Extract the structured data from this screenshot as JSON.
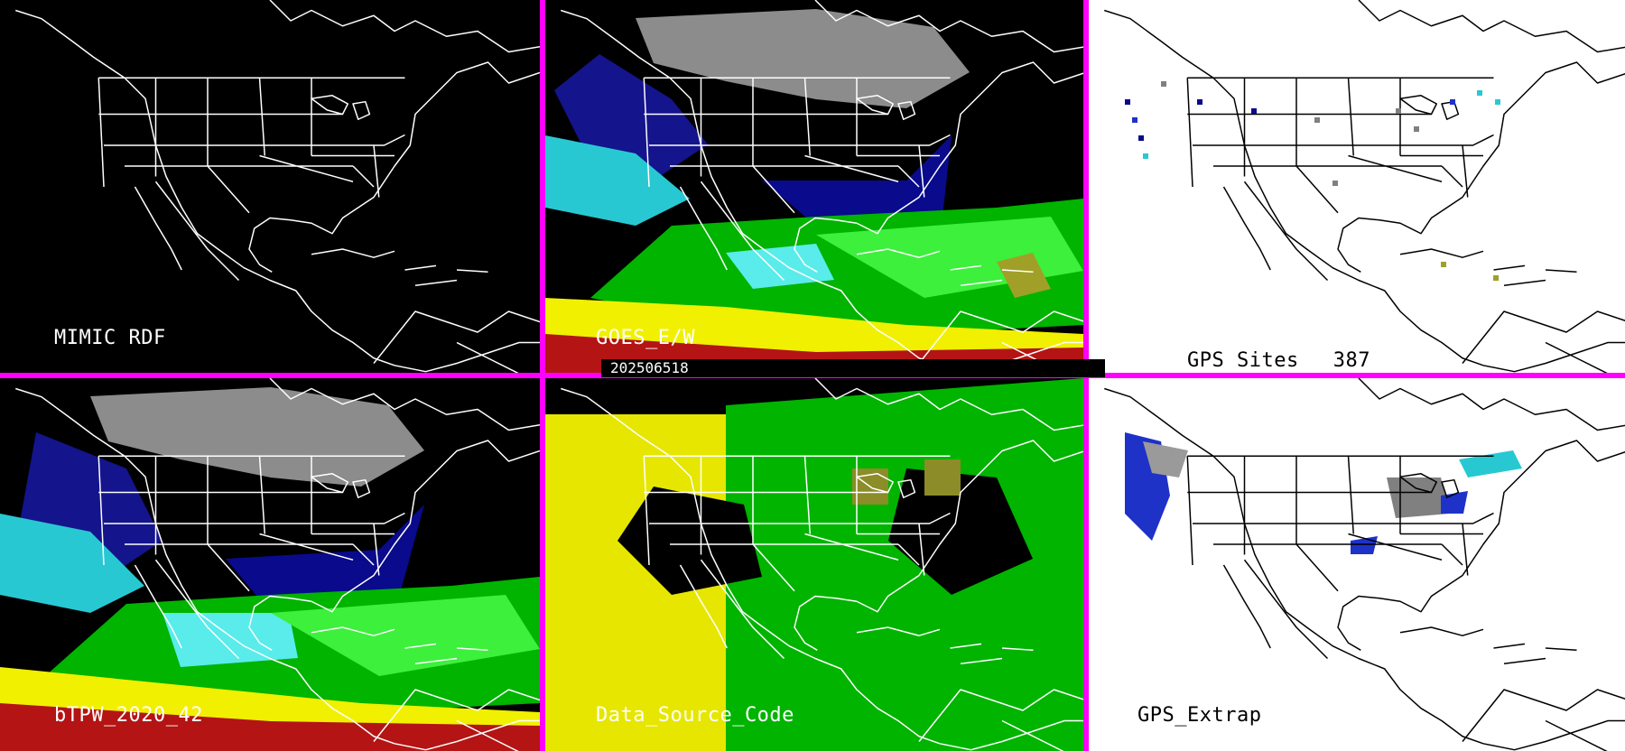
{
  "panels": {
    "mimic_rdf": {
      "label": "MIMIC RDF"
    },
    "goes": {
      "label": "GOES_E/W"
    },
    "gps_sites": {
      "label": "GPS Sites",
      "count": "387"
    },
    "btpw": {
      "label": "bTPW_2020_42"
    },
    "data_source": {
      "label": "Data_Source_Code"
    },
    "gps_extrap": {
      "label": "GPS_Extrap"
    }
  },
  "timestamp": "202506518",
  "colors": {
    "separator": "#ff00ff",
    "map_outline_dark": "#ffffff",
    "map_outline_light": "#000000",
    "tpw_scale": [
      "#808080",
      "#0a0a8c",
      "#1e32c8",
      "#28c8d2",
      "#5aebeb",
      "#00b400",
      "#3cf03c",
      "#a0a028",
      "#f0f000",
      "#b41414",
      "#6e0000"
    ],
    "data_source_scale": [
      "#e6e600",
      "#00b400",
      "#8c8c28"
    ]
  }
}
